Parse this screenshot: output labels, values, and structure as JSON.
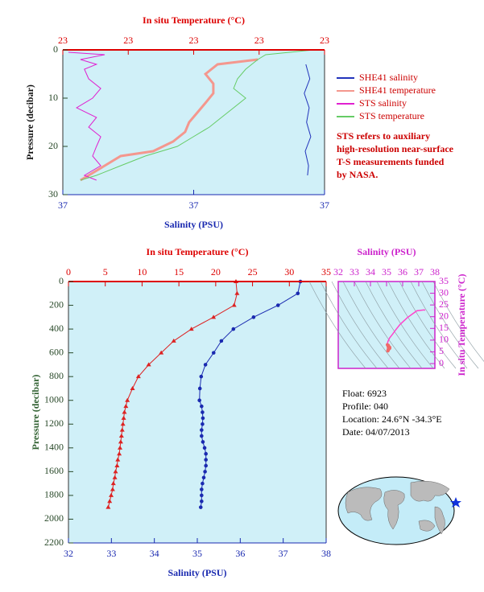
{
  "chart_data": [
    {
      "type": "line",
      "x_label": "Salinity (PSU)",
      "x2_label": "In situ Temperature (°C)",
      "y_label": "Pressure (decibar)",
      "xlim": [
        36.6,
        37.4
      ],
      "xticks": [
        {
          "value": 36.6,
          "label": "37"
        },
        37,
        {
          "value": 37.4,
          "label": "37"
        }
      ],
      "x2lim": [
        22.6,
        23.4
      ],
      "x2ticks": [
        {
          "value": 22.6,
          "label": "23"
        },
        {
          "value": 22.8,
          "label": "23"
        },
        23,
        {
          "value": 23.2,
          "label": "23"
        },
        {
          "value": 23.4,
          "label": "23"
        }
      ],
      "ylim": [
        0,
        30
      ],
      "yticks": [
        0,
        10,
        20,
        30
      ],
      "legend": "right",
      "note": [
        "STS refers to auxiliary",
        "high-resolution near-surface",
        "T-S measurements funded",
        "by NASA."
      ],
      "series": [
        {
          "name": "SHE41 salinity",
          "color": "#2233bb",
          "axis": "x",
          "values": [
            37.343,
            37.355,
            37.338,
            37.353,
            37.345,
            37.358,
            37.341,
            37.351,
            37.348
          ],
          "pressure": [
            3,
            6,
            9,
            12,
            15,
            18,
            21,
            24,
            26
          ]
        },
        {
          "name": "SHE41 temperature",
          "color": "#f4978e",
          "axis": "x2",
          "values": [
            23.196,
            23.073,
            23.036,
            23.06,
            23.06,
            23.036,
            23.011,
            22.986,
            22.974,
            22.937,
            22.876,
            22.777,
            22.728,
            22.679,
            22.654
          ],
          "pressure": [
            2,
            3,
            5,
            7,
            9,
            11,
            13,
            15,
            17,
            19,
            21,
            22,
            24,
            26,
            27
          ]
        },
        {
          "name": "STS salinity",
          "color": "#e020d0",
          "axis": "x",
          "values": [
            36.617,
            36.728,
            36.654,
            36.703,
            36.666,
            36.679,
            36.716,
            36.691,
            36.642,
            36.703,
            36.679,
            36.716,
            36.703,
            36.691,
            36.716,
            36.666,
            36.703
          ],
          "pressure": [
            0.5,
            1,
            2,
            3,
            4,
            6,
            8,
            10,
            12,
            14,
            16,
            18,
            20,
            22,
            24,
            26,
            27
          ]
        },
        {
          "name": "STS temperature",
          "color": "#66cc66",
          "axis": "x2",
          "values": [
            23.368,
            23.22,
            23.196,
            23.159,
            23.134,
            23.122,
            23.159,
            23.122,
            23.085,
            23.048,
            22.999,
            22.95,
            22.852,
            22.777,
            22.703,
            22.654
          ],
          "pressure": [
            0,
            1,
            2,
            4,
            6,
            8,
            10,
            12,
            14,
            16,
            18,
            20,
            22,
            24,
            26,
            27
          ]
        }
      ]
    },
    {
      "type": "line",
      "x_label": "Salinity (PSU)",
      "x2_label": "In situ Temperature (°C)",
      "y_label": "Pressure (decibar)",
      "xlim": [
        32,
        38
      ],
      "xticks": [
        32,
        33,
        34,
        35,
        36,
        37,
        38
      ],
      "x2lim": [
        0,
        35
      ],
      "x2ticks": [
        0,
        5,
        10,
        15,
        20,
        25,
        30,
        35
      ],
      "ylim": [
        0,
        2200
      ],
      "yticks": [
        0,
        200,
        400,
        600,
        800,
        1000,
        1200,
        1400,
        1600,
        1800,
        2000,
        2200
      ],
      "series": [
        {
          "color": "#dd2222",
          "axis": "x2",
          "marker": "triangle",
          "values": [
            22.75,
            22.9,
            22.5,
            19.7,
            16.7,
            14.3,
            12.6,
            10.9,
            9.5,
            8.7,
            8.0,
            7.8,
            7.6,
            7.5,
            7.4,
            7.3,
            7.2,
            7.1,
            7.0,
            6.9,
            6.7,
            6.6,
            6.4,
            6.3,
            6.1,
            6.0,
            5.8,
            5.6,
            5.4
          ],
          "pressure": [
            0,
            100,
            200,
            300,
            400,
            500,
            600,
            700,
            800,
            900,
            1000,
            1050,
            1100,
            1150,
            1200,
            1250,
            1300,
            1350,
            1400,
            1450,
            1500,
            1550,
            1600,
            1650,
            1700,
            1750,
            1800,
            1850,
            1900
          ]
        },
        {
          "color": "#1a2ab0",
          "axis": "x",
          "marker": "circle",
          "values": [
            37.4,
            37.34,
            36.88,
            36.31,
            35.84,
            35.56,
            35.38,
            35.19,
            35.09,
            35.06,
            35.05,
            35.1,
            35.12,
            35.13,
            35.12,
            35.1,
            35.1,
            35.13,
            35.17,
            35.2,
            35.2,
            35.2,
            35.18,
            35.15,
            35.12,
            35.1,
            35.1,
            35.1,
            35.08
          ],
          "pressure": [
            0,
            100,
            200,
            300,
            400,
            500,
            600,
            700,
            800,
            900,
            1000,
            1050,
            1100,
            1150,
            1200,
            1250,
            1300,
            1350,
            1400,
            1450,
            1500,
            1550,
            1600,
            1650,
            1700,
            1750,
            1800,
            1850,
            1900
          ]
        }
      ]
    },
    {
      "type": "ts",
      "x_label": "Salinity (PSU)",
      "y_label": "In situ Temperature (°C)",
      "xlim": [
        32,
        38
      ],
      "xticks": [
        32,
        33,
        34,
        35,
        36,
        37,
        38
      ],
      "ylim": [
        0,
        35
      ],
      "yticks": [
        0,
        5,
        10,
        15,
        20,
        25,
        30,
        35
      ],
      "color": "#ff44cc",
      "marker_color": "#f06a6a"
    }
  ],
  "float_info": [
    "Float:  6923",
    "Profile:  040",
    "Location:  24.6°N  -34.3°E",
    "Date:  04/07/2013"
  ]
}
